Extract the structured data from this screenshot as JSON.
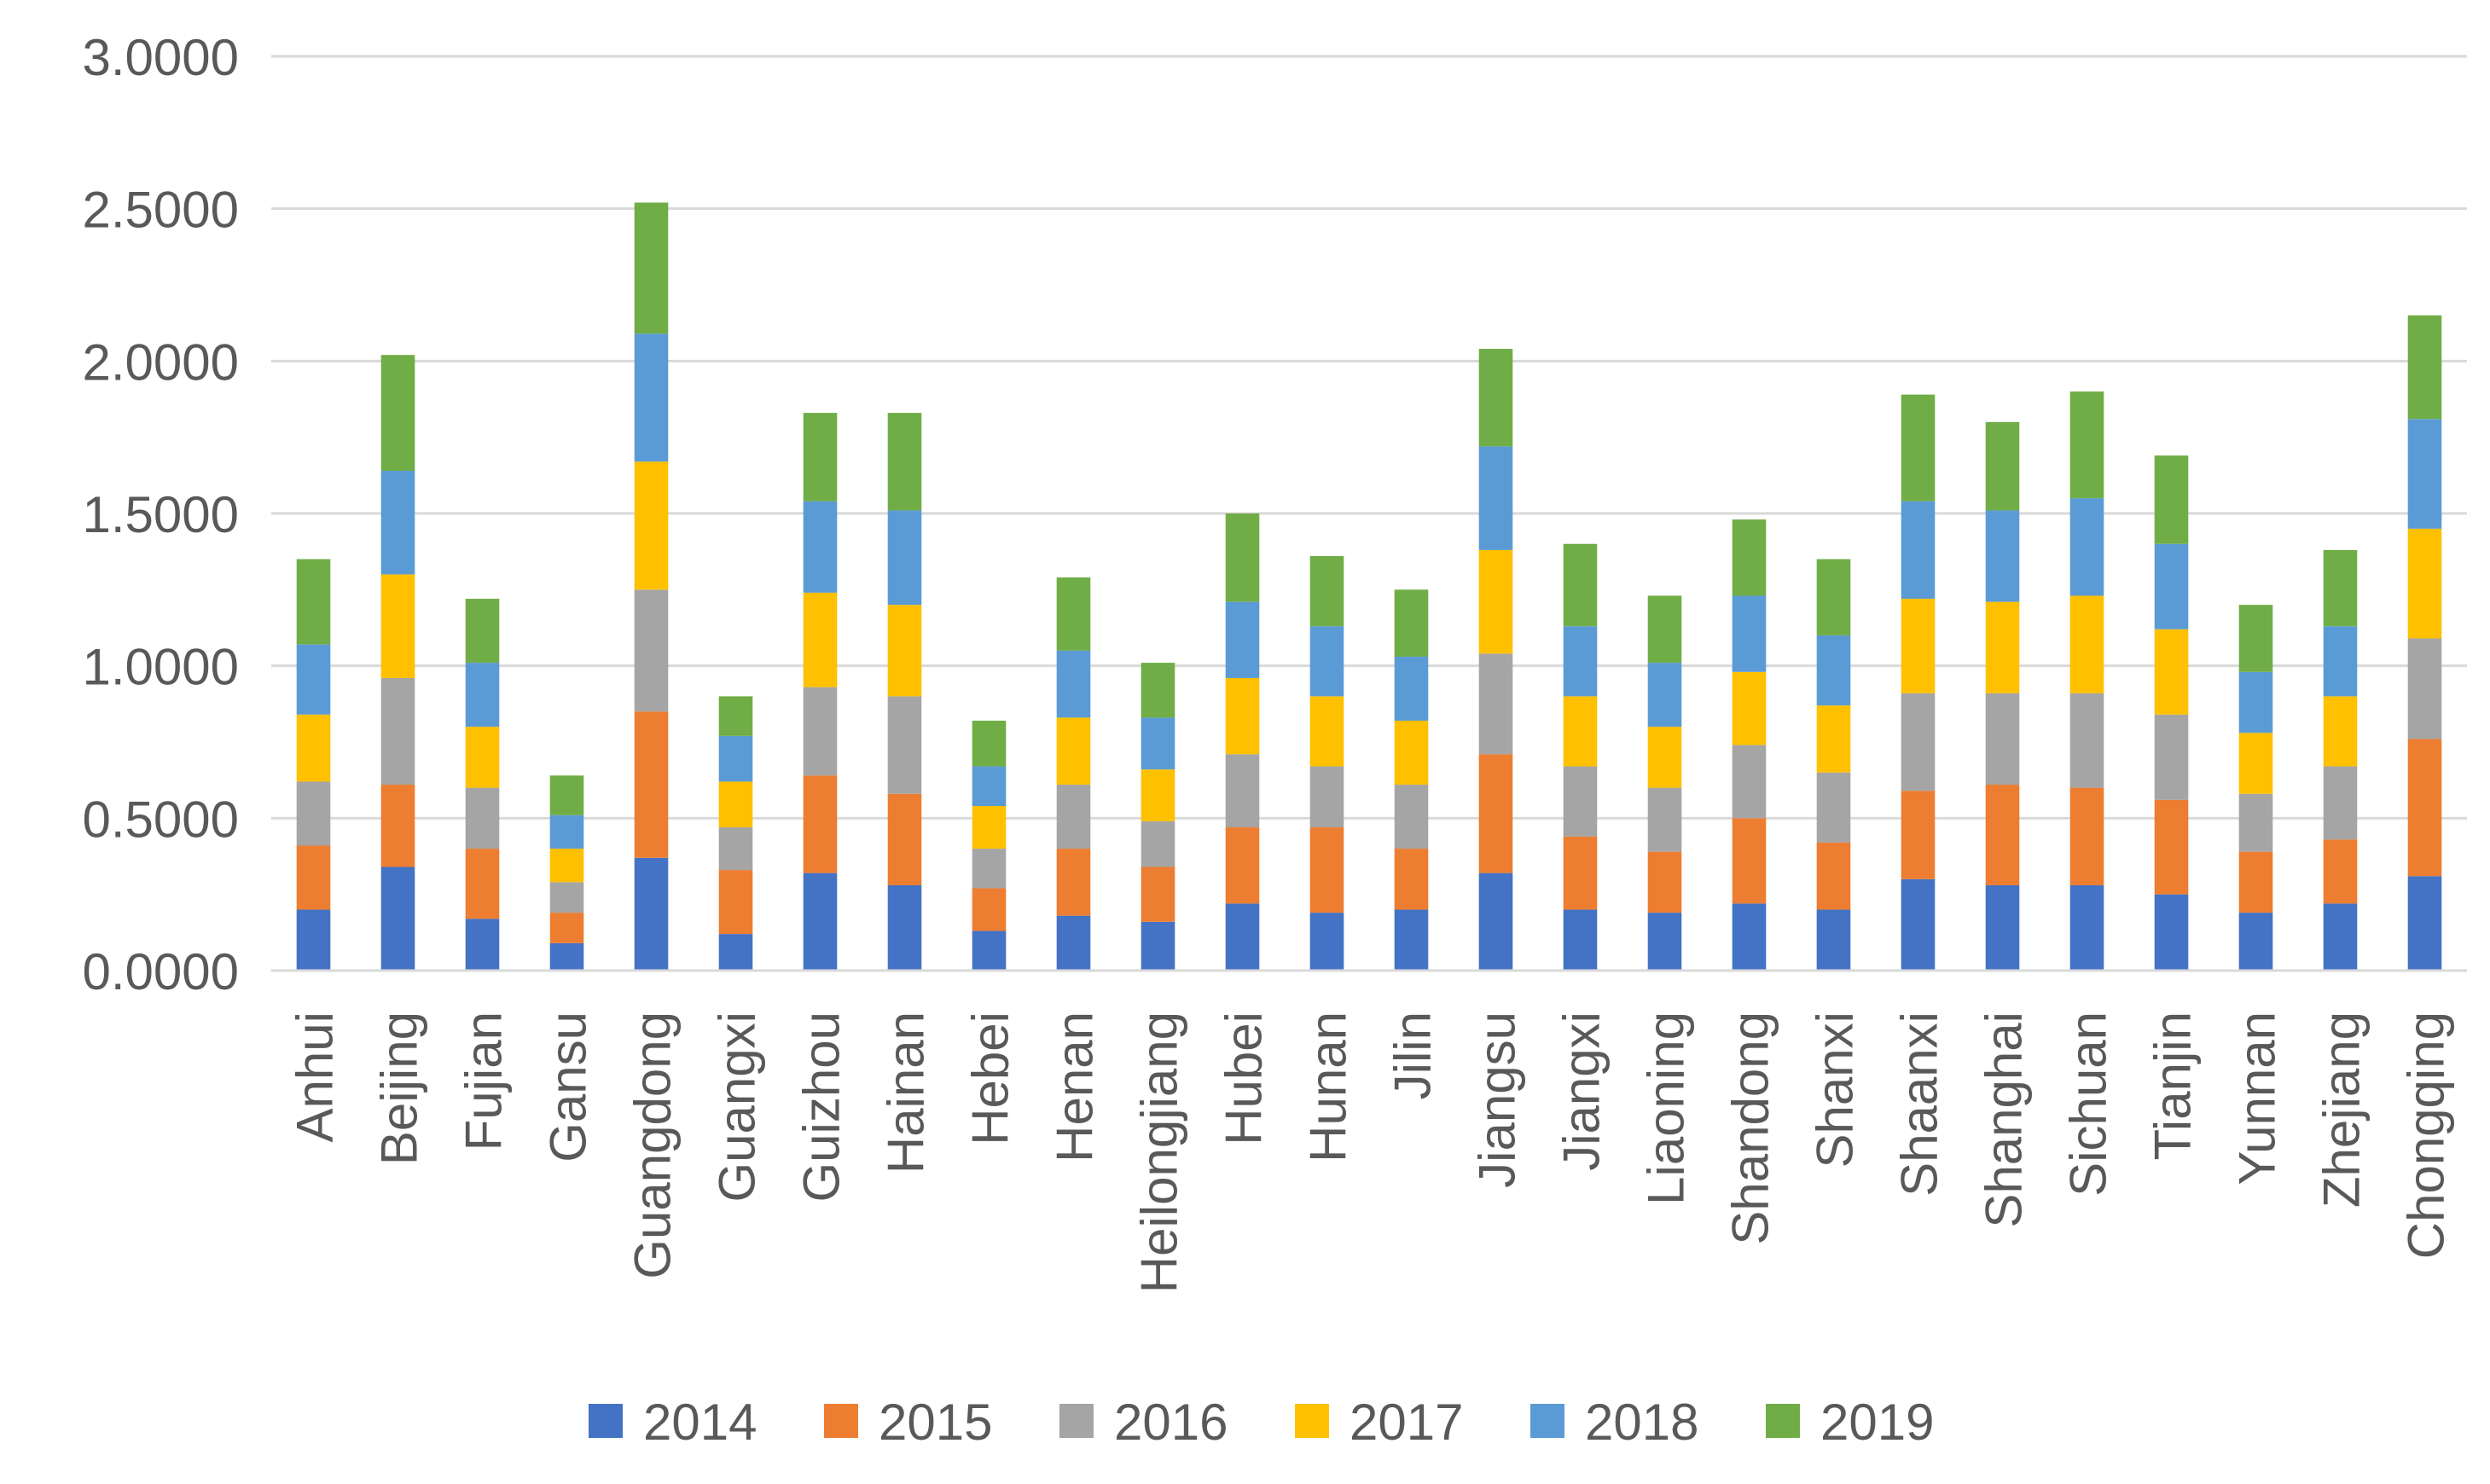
{
  "chart_data": {
    "type": "bar",
    "stacked": true,
    "title": "",
    "xlabel": "",
    "ylabel": "",
    "ylim": [
      0,
      3
    ],
    "ytick_labels": [
      "0.0000",
      "0.5000",
      "1.0000",
      "1.5000",
      "2.0000",
      "2.5000",
      "3.0000"
    ],
    "yticks": [
      0,
      0.5,
      1,
      1.5,
      2,
      2.5,
      3
    ],
    "grid": true,
    "legend_position": "bottom",
    "categories": [
      "Anhui",
      "Beijing",
      "Fujian",
      "Gansu",
      "Guangdong",
      "Guangxi",
      "Guizhou",
      "Hainan",
      "Hebei",
      "Henan",
      "Heilongjiang",
      "Hubei",
      "Hunan",
      "Jilin",
      "Jiangsu",
      "Jiangxi",
      "Liaoning",
      "Shandong",
      "Shanxi",
      "Shaanxi",
      "Shanghai",
      "Sichuan",
      "Tianjin",
      "Yunnan",
      "Zhejiang",
      "Chongqing"
    ],
    "series": [
      {
        "name": "2014",
        "color": "#4472C4",
        "values": [
          0.2,
          0.34,
          0.17,
          0.09,
          0.37,
          0.12,
          0.32,
          0.28,
          0.13,
          0.18,
          0.16,
          0.22,
          0.19,
          0.2,
          0.32,
          0.2,
          0.19,
          0.22,
          0.2,
          0.3,
          0.28,
          0.28,
          0.25,
          0.19,
          0.22,
          0.31
        ]
      },
      {
        "name": "2015",
        "color": "#ED7D31",
        "values": [
          0.21,
          0.27,
          0.23,
          0.1,
          0.48,
          0.21,
          0.32,
          0.3,
          0.14,
          0.22,
          0.18,
          0.25,
          0.28,
          0.2,
          0.39,
          0.24,
          0.2,
          0.28,
          0.22,
          0.29,
          0.33,
          0.32,
          0.31,
          0.2,
          0.21,
          0.45
        ]
      },
      {
        "name": "2016",
        "color": "#A5A5A5",
        "values": [
          0.21,
          0.35,
          0.2,
          0.1,
          0.4,
          0.14,
          0.29,
          0.32,
          0.13,
          0.21,
          0.15,
          0.24,
          0.2,
          0.21,
          0.33,
          0.23,
          0.21,
          0.24,
          0.23,
          0.32,
          0.3,
          0.31,
          0.28,
          0.19,
          0.24,
          0.33
        ]
      },
      {
        "name": "2017",
        "color": "#FFC000",
        "values": [
          0.22,
          0.34,
          0.2,
          0.11,
          0.42,
          0.15,
          0.31,
          0.3,
          0.14,
          0.22,
          0.17,
          0.25,
          0.23,
          0.21,
          0.34,
          0.23,
          0.2,
          0.24,
          0.22,
          0.31,
          0.3,
          0.32,
          0.28,
          0.2,
          0.23,
          0.36
        ]
      },
      {
        "name": "2018",
        "color": "#5B9BD5",
        "values": [
          0.23,
          0.34,
          0.21,
          0.11,
          0.42,
          0.15,
          0.3,
          0.31,
          0.13,
          0.22,
          0.17,
          0.25,
          0.23,
          0.21,
          0.34,
          0.23,
          0.21,
          0.25,
          0.23,
          0.32,
          0.3,
          0.32,
          0.28,
          0.2,
          0.23,
          0.36
        ]
      },
      {
        "name": "2019",
        "color": "#70AD47",
        "values": [
          0.28,
          0.38,
          0.21,
          0.13,
          0.43,
          0.13,
          0.29,
          0.32,
          0.15,
          0.24,
          0.18,
          0.29,
          0.23,
          0.22,
          0.32,
          0.27,
          0.22,
          0.25,
          0.25,
          0.35,
          0.29,
          0.35,
          0.29,
          0.22,
          0.25,
          0.34
        ]
      }
    ]
  }
}
